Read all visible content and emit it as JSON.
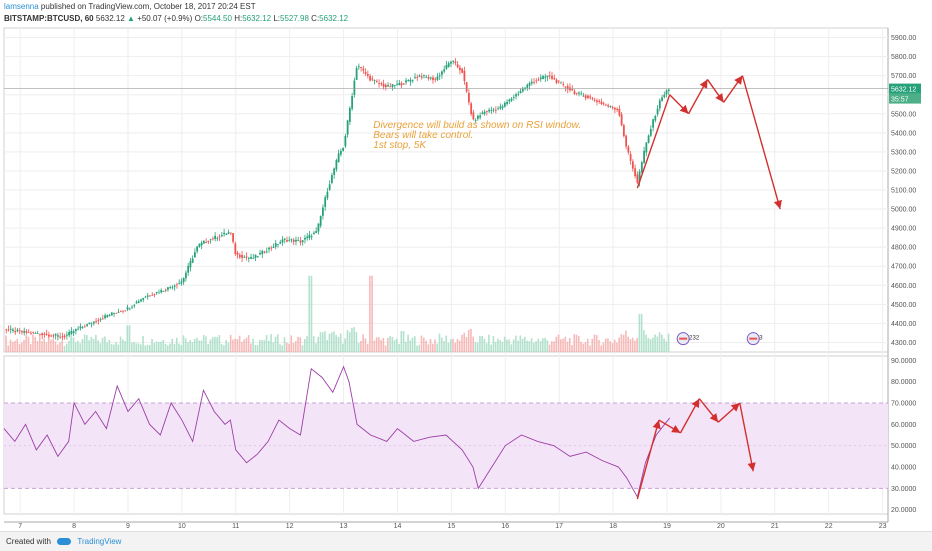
{
  "header": {
    "author": "lamsenna",
    "published": "published on TradingView.com, October 18, 2017 20:24 EST",
    "symbol": "BITSTAMP:BTCUSD, 60",
    "last": "5632.12",
    "change": "+50.07 (+0.9%)",
    "open_label": "O:",
    "open": "5544.50",
    "high_label": "H:",
    "high": "5632.12",
    "low_label": "L:",
    "low": "5527.98",
    "close_label": "C:",
    "close": "5632.12"
  },
  "price_tag": {
    "value": "5632.12",
    "countdown": "35:57"
  },
  "annotation": {
    "lines": [
      "Divergence will build as shown on RSI window.",
      "Bears will take control.",
      "1st stop, 5K"
    ]
  },
  "events": {
    "badge1": "232",
    "badge2": "3"
  },
  "footer": {
    "created_with": "Created with",
    "brand": "TradingView"
  },
  "colors": {
    "up": "#26a17a",
    "down": "#ef5350",
    "annotation": "#e8a13a",
    "arrow": "#d32f2f",
    "rsi_line": "#9c3fa6",
    "rsi_band": "#f3e5f7",
    "author": "#2a8fd6"
  },
  "chart_data": [
    {
      "type": "candlestick",
      "title": "BITSTAMP:BTCUSD, 60",
      "x_ticks": [
        "7",
        "8",
        "9",
        "10",
        "11",
        "12",
        "13",
        "14",
        "15",
        "16",
        "17",
        "18",
        "19",
        "20",
        "21",
        "22",
        "23"
      ],
      "y_ticks": [
        "4300.00",
        "4400.00",
        "4500.00",
        "4600.00",
        "4700.00",
        "4800.00",
        "4900.00",
        "5000.00",
        "5100.00",
        "5200.00",
        "5300.00",
        "5400.00",
        "5500.00",
        "5600.00",
        "5700.00",
        "5800.00",
        "5900.00"
      ],
      "ylim": [
        4250,
        5950
      ],
      "xlim": [
        6.7,
        23.1
      ],
      "close_path": [
        [
          6.7,
          4370
        ],
        [
          7.0,
          4355
        ],
        [
          7.4,
          4345
        ],
        [
          7.8,
          4330
        ],
        [
          8.0,
          4360
        ],
        [
          8.3,
          4400
        ],
        [
          8.6,
          4440
        ],
        [
          9.0,
          4480
        ],
        [
          9.3,
          4540
        ],
        [
          9.7,
          4580
        ],
        [
          10.0,
          4620
        ],
        [
          10.3,
          4810
        ],
        [
          10.6,
          4850
        ],
        [
          10.9,
          4880
        ],
        [
          11.0,
          4760
        ],
        [
          11.3,
          4740
        ],
        [
          11.6,
          4790
        ],
        [
          11.9,
          4840
        ],
        [
          12.2,
          4830
        ],
        [
          12.5,
          4880
        ],
        [
          12.7,
          5100
        ],
        [
          12.9,
          5280
        ],
        [
          13.0,
          5330
        ],
        [
          13.1,
          5500
        ],
        [
          13.25,
          5760
        ],
        [
          13.5,
          5680
        ],
        [
          13.8,
          5640
        ],
        [
          14.1,
          5660
        ],
        [
          14.4,
          5700
        ],
        [
          14.7,
          5680
        ],
        [
          15.0,
          5780
        ],
        [
          15.2,
          5720
        ],
        [
          15.4,
          5460
        ],
        [
          15.6,
          5510
        ],
        [
          15.9,
          5530
        ],
        [
          16.2,
          5600
        ],
        [
          16.5,
          5670
        ],
        [
          16.8,
          5700
        ],
        [
          17.0,
          5660
        ],
        [
          17.3,
          5610
        ],
        [
          17.6,
          5580
        ],
        [
          17.9,
          5540
        ],
        [
          18.1,
          5520
        ],
        [
          18.25,
          5320
        ],
        [
          18.45,
          5140
        ],
        [
          18.6,
          5330
        ],
        [
          18.75,
          5470
        ],
        [
          18.9,
          5590
        ],
        [
          19.05,
          5632
        ]
      ],
      "volume_spikes": [
        [
          12.4,
          4650
        ],
        [
          13.5,
          4650
        ],
        [
          18.5,
          4450
        ],
        [
          9.0,
          4390
        ],
        [
          14.1,
          4360
        ]
      ],
      "projection_arrow": [
        [
          19.05,
          5600
        ],
        [
          19.4,
          5500
        ],
        [
          19.75,
          5680
        ],
        [
          20.05,
          5560
        ],
        [
          20.4,
          5700
        ],
        [
          21.1,
          5000
        ]
      ],
      "annotation_text": "Divergence will build as shown on RSI window. Bears will take control. 1st stop, 5K",
      "current_price": 5632.12
    },
    {
      "type": "line",
      "title": "",
      "x_ticks": [
        "7",
        "8",
        "9",
        "10",
        "11",
        "12",
        "13",
        "14",
        "15",
        "16",
        "17",
        "18",
        "19",
        "20",
        "21",
        "22",
        "23"
      ],
      "y_ticks": [
        "20.0000",
        "30.0000",
        "40.0000",
        "50.0000",
        "60.0000",
        "70.0000",
        "80.0000",
        "90.0000"
      ],
      "ylim": [
        18,
        92
      ],
      "xlim": [
        6.7,
        23.1
      ],
      "band": [
        30,
        70
      ],
      "series": [
        {
          "name": "",
          "points": [
            [
              6.7,
              58
            ],
            [
              6.9,
              52
            ],
            [
              7.1,
              60
            ],
            [
              7.3,
              48
            ],
            [
              7.5,
              55
            ],
            [
              7.7,
              45
            ],
            [
              7.9,
              52
            ],
            [
              8.0,
              70
            ],
            [
              8.2,
              60
            ],
            [
              8.4,
              66
            ],
            [
              8.6,
              58
            ],
            [
              8.8,
              78
            ],
            [
              9.0,
              66
            ],
            [
              9.2,
              72
            ],
            [
              9.4,
              60
            ],
            [
              9.6,
              55
            ],
            [
              9.8,
              70
            ],
            [
              10.0,
              62
            ],
            [
              10.2,
              52
            ],
            [
              10.4,
              76
            ],
            [
              10.6,
              66
            ],
            [
              10.8,
              60
            ],
            [
              10.9,
              62
            ],
            [
              11.0,
              48
            ],
            [
              11.2,
              42
            ],
            [
              11.4,
              46
            ],
            [
              11.6,
              52
            ],
            [
              11.8,
              62
            ],
            [
              12.0,
              58
            ],
            [
              12.2,
              55
            ],
            [
              12.4,
              86
            ],
            [
              12.6,
              82
            ],
            [
              12.8,
              75
            ],
            [
              13.0,
              87
            ],
            [
              13.1,
              80
            ],
            [
              13.25,
              60
            ],
            [
              13.5,
              55
            ],
            [
              13.8,
              52
            ],
            [
              14.0,
              58
            ],
            [
              14.3,
              52
            ],
            [
              14.6,
              54
            ],
            [
              14.9,
              55
            ],
            [
              15.2,
              48
            ],
            [
              15.4,
              40
            ],
            [
              15.5,
              30
            ],
            [
              15.7,
              38
            ],
            [
              16.0,
              50
            ],
            [
              16.3,
              55
            ],
            [
              16.6,
              52
            ],
            [
              16.9,
              50
            ],
            [
              17.2,
              45
            ],
            [
              17.5,
              47
            ],
            [
              17.8,
              43
            ],
            [
              18.1,
              40
            ],
            [
              18.25,
              35
            ],
            [
              18.45,
              26
            ],
            [
              18.6,
              42
            ],
            [
              18.8,
              55
            ],
            [
              19.05,
              63
            ]
          ]
        }
      ],
      "projection_arrow": [
        [
          18.45,
          25
        ],
        [
          18.85,
          62
        ],
        [
          19.25,
          56
        ],
        [
          19.6,
          72
        ],
        [
          19.95,
          61
        ],
        [
          20.35,
          70
        ],
        [
          20.6,
          38
        ]
      ]
    }
  ]
}
